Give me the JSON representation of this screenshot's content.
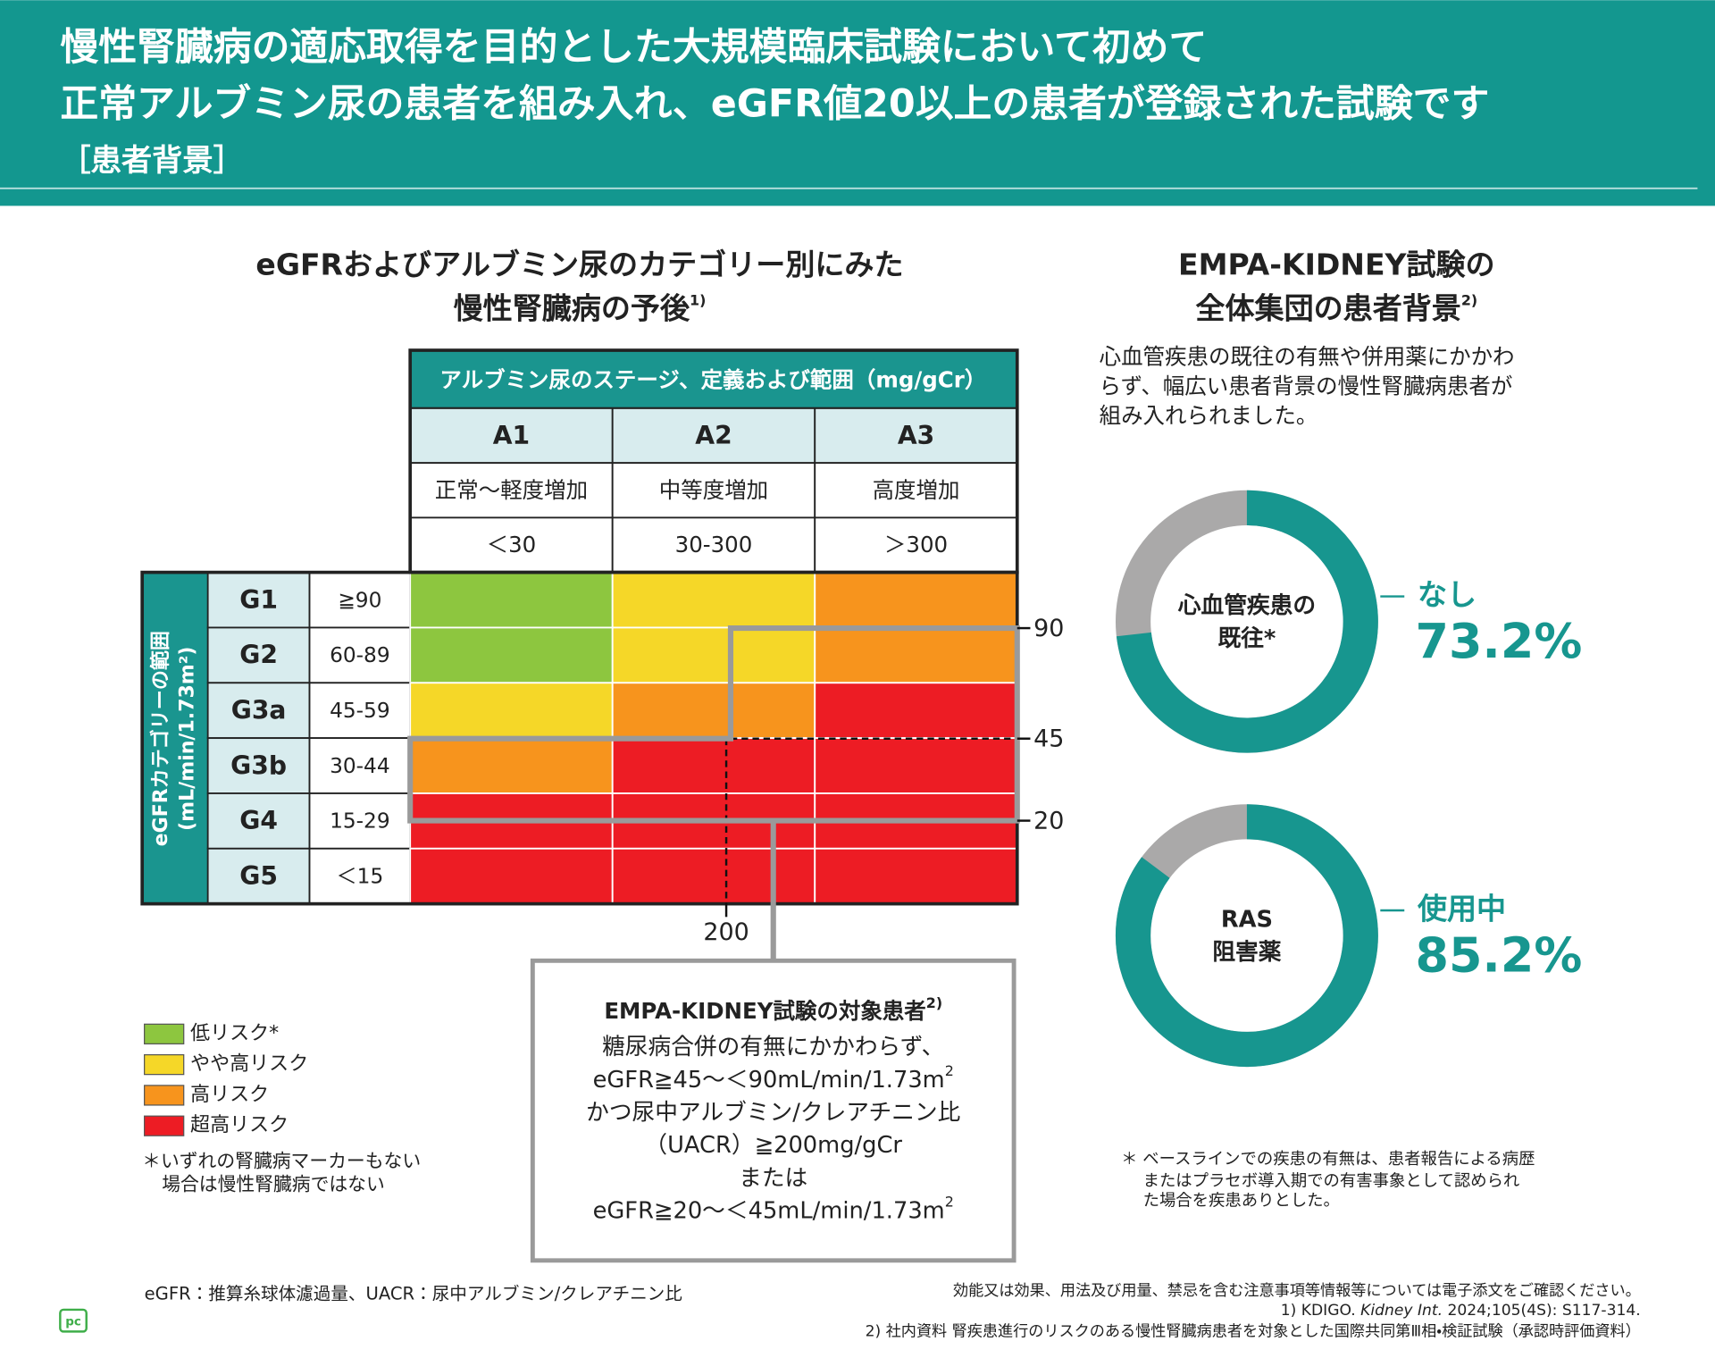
{
  "header": {
    "title_lines": [
      "慢性腎臓病の適応取得を目的とした大規模臨床試験において初めて",
      "正常アルブミン尿の患者を組み入れ、eGFR値20以上の患者が登録された試験です"
    ],
    "subtitle": "［患者背景］"
  },
  "prognosis": {
    "title_lines": [
      "eGFRおよびアルブミン尿のカテゴリー別にみた",
      "慢性腎臓病の予後"
    ],
    "title_ref": "1)",
    "albuminuria_header": "アルブミン尿のステージ、定義および範囲（mg/gCr）",
    "albuminuria_stages": [
      {
        "stage": "A1",
        "definition": "正常～軽度増加",
        "range": "＜30"
      },
      {
        "stage": "A2",
        "definition": "中等度増加",
        "range": "30-300"
      },
      {
        "stage": "A3",
        "definition": "高度増加",
        "range": "＞300"
      }
    ],
    "egfr_header": [
      "eGFRカテゴリーの範囲",
      "(mL/min/1.73m²)"
    ],
    "egfr_categories": [
      {
        "category": "G1",
        "range": "≧90"
      },
      {
        "category": "G2",
        "range": "60-89"
      },
      {
        "category": "G3a",
        "range": "45-59"
      },
      {
        "category": "G3b",
        "range": "30-44"
      },
      {
        "category": "G4",
        "range": "15-29"
      },
      {
        "category": "G5",
        "range": "＜15"
      }
    ],
    "risk_matrix": [
      [
        "#8dc63f",
        "#f5d728",
        "#f7941d"
      ],
      [
        "#8dc63f",
        "#f5d728",
        "#f7941d"
      ],
      [
        "#f5d728",
        "#f7941d",
        "#ed1c24"
      ],
      [
        "#f7941d",
        "#ed1c24",
        "#ed1c24"
      ],
      [
        "#ed1c24",
        "#ed1c24",
        "#ed1c24"
      ],
      [
        "#ed1c24",
        "#ed1c24",
        "#ed1c24"
      ]
    ],
    "egfr_thresholds": [
      90,
      45,
      20
    ],
    "uacr_threshold": 200,
    "legend": [
      {
        "label": "低リスク*",
        "color": "#8dc63f"
      },
      {
        "label": "やや高リスク",
        "color": "#f5d728"
      },
      {
        "label": "高リスク",
        "color": "#f7941d"
      },
      {
        "label": "超高リスク",
        "color": "#ed1c24"
      }
    ],
    "legend_note": [
      "＊いずれの腎臓病マーカーもない",
      "場合は慢性腎臓病ではない"
    ]
  },
  "target_box": {
    "title": "EMPA-KIDNEY試験の対象患者",
    "title_ref": "2)",
    "lines": [
      {
        "text": "糖尿病合併の有無にかかわらず、"
      },
      {
        "text": "eGFR≧45～＜90mL/min/1.73m",
        "sup": "2"
      },
      {
        "text": "かつ尿中アルブミン/クレアチニン比"
      },
      {
        "text": "（UACR）≧200mg/gCr"
      },
      {
        "text": "または"
      },
      {
        "text": "eGFR≧20～＜45mL/min/1.73m",
        "sup": "2"
      }
    ]
  },
  "background": {
    "title_lines": [
      "EMPA-KIDNEY試験の",
      "全体集団の患者背景"
    ],
    "title_ref": "2)",
    "description": [
      "心血管疾患の既往の有無や併用薬にかかわ",
      "らず、幅広い患者背景の慢性腎臓病患者が",
      "組み入れられました。"
    ],
    "donuts": [
      {
        "label_lines": [
          "心血管疾患の",
          "既往*"
        ],
        "status": "なし",
        "value": 73.2,
        "value_label": "73.2%",
        "color": "#17968f",
        "rest_color": "#aaa9a9"
      },
      {
        "label_lines": [
          "RAS",
          "阻害薬"
        ],
        "status": "使用中",
        "value": 85.2,
        "value_label": "85.2%",
        "color": "#17968f",
        "rest_color": "#aaa9a9"
      }
    ],
    "note": [
      "＊ ベースラインでの疾患の有無は、患者報告による病歴",
      "またはプラセボ導入期での有害事象として認められ",
      "た場合を疾患ありとした。"
    ]
  },
  "footer": {
    "abbreviations": "eGFR：推算糸球体濾過量、UACR：尿中アルブミン/クレアチニン比",
    "notice": "効能又は効果、用法及び用量、禁忌を含む注意事項等情報等については電子添文をご確認ください。",
    "reference_1": {
      "prefix": "1) KDIGO. ",
      "journal": "Kidney Int.",
      "citation": " 2024;105(4S): S117-314."
    },
    "reference_2": "2) 社内資料 腎疾患進行のリスクのある慢性腎臓病患者を対象とした国際共同第Ⅲ相・検証試験（承認時評価資料）",
    "logo": "pc"
  }
}
